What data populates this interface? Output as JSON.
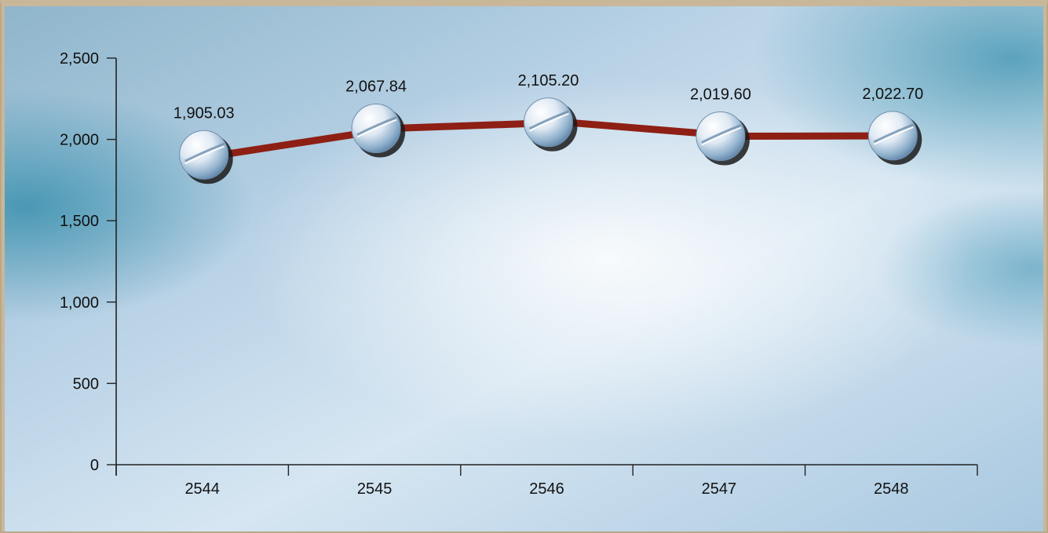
{
  "chart_data": {
    "type": "line",
    "title": "",
    "xlabel": "",
    "ylabel": "",
    "categories": [
      "2544",
      "2545",
      "2546",
      "2547",
      "2548"
    ],
    "series": [
      {
        "values": [
          1905.03,
          2067.84,
          2105.2,
          2019.6,
          2022.7
        ]
      }
    ],
    "data_labels": [
      "1,905.03",
      "2,067.84",
      "2,105.20",
      "2,019.60",
      "2,022.70"
    ],
    "ylim": [
      0,
      2500
    ],
    "y_ticks": [
      0,
      500,
      1000,
      1500,
      2000,
      2500
    ],
    "y_tick_labels": [
      "0",
      "500",
      "1,000",
      "1,500",
      "2,000",
      "2,500"
    ],
    "grid": false,
    "legend": "none",
    "line_color": "#8e1f14",
    "marker": "pill-tablet",
    "background": "blue-gradient"
  }
}
